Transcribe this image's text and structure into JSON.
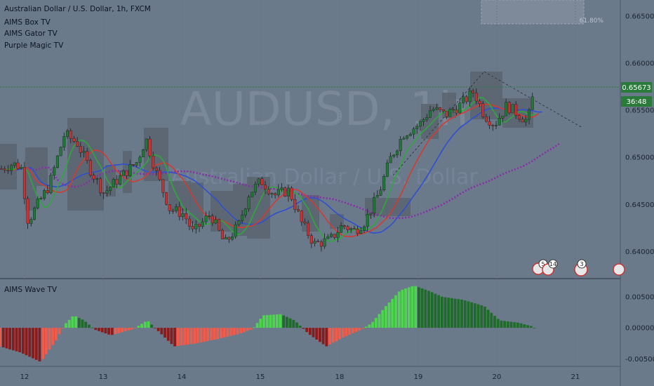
{
  "header": {
    "symbol_line": "Australian Dollar / U.S. Dollar, 1h, FXCM",
    "indicators": [
      "AIMS Box TV",
      "AIMS Gator TV",
      "Purple Magic TV"
    ],
    "sub_panel_title": "AIMS Wave TV"
  },
  "watermark": {
    "symbol": "AUDUSD, 1h",
    "name": "Australian Dollar / U.S. Dollar"
  },
  "fib_label": "61.80%",
  "price_badge": {
    "price": "0.65673",
    "countdown": "36:48",
    "color": "#2a7a3a"
  },
  "event_badges": [
    {
      "flag": "US",
      "count": "5"
    },
    {
      "flag": "US",
      "count": "14"
    },
    {
      "flag": "AU",
      "count": "3"
    },
    {
      "flag": "AU",
      "count": ""
    }
  ],
  "colors": {
    "background": "#6b7a8b",
    "up_candle": "#1e7a35",
    "down_candle": "#c73333",
    "box": "#5a6470",
    "gator_fast": "#2ea83a",
    "gator_mid": "#d43a30",
    "gator_slow": "#2f4fd0",
    "purple_magic": "#8b2aa8",
    "wave_up_strong": "#4cd64c",
    "wave_up_weak": "#1e6b2a",
    "wave_down_strong": "#f25a4a",
    "wave_down_weak": "#8b1a1a"
  },
  "chart_data": [
    {
      "type": "candlestick",
      "panel": "main",
      "xlabel": "",
      "ylabel": "",
      "x_ticks": [
        "12",
        "13",
        "14",
        "15",
        "18",
        "19",
        "20",
        "21"
      ],
      "y_ticks": [
        "0.66500",
        "0.66000",
        "0.65500",
        "0.65000",
        "0.64500",
        "0.64000"
      ],
      "ylim": [
        0.6372,
        0.6667
      ],
      "current_price": 0.65673,
      "grid": true,
      "candles_summary": [
        {
          "x": "12",
          "open": 0.6488,
          "close": 0.6475
        },
        {
          "x": "13",
          "open": 0.65,
          "close": 0.6487
        },
        {
          "x": "14",
          "open": 0.6461,
          "close": 0.6442
        },
        {
          "x": "15",
          "open": 0.6452,
          "close": 0.6466
        },
        {
          "x": "18",
          "open": 0.6415,
          "close": 0.6426
        },
        {
          "x": "19",
          "open": 0.6531,
          "close": 0.6548
        },
        {
          "x": "20",
          "open": 0.6552,
          "close": 0.6545
        },
        {
          "x": "21",
          "open": 0.6549,
          "close": 0.6567
        }
      ]
    },
    {
      "type": "bar",
      "panel": "sub",
      "title": "AIMS Wave TV",
      "y_ticks": [
        "0.00500",
        "0.00000",
        "-0.00500"
      ],
      "ylim": [
        -0.0062,
        0.0078
      ]
    }
  ]
}
